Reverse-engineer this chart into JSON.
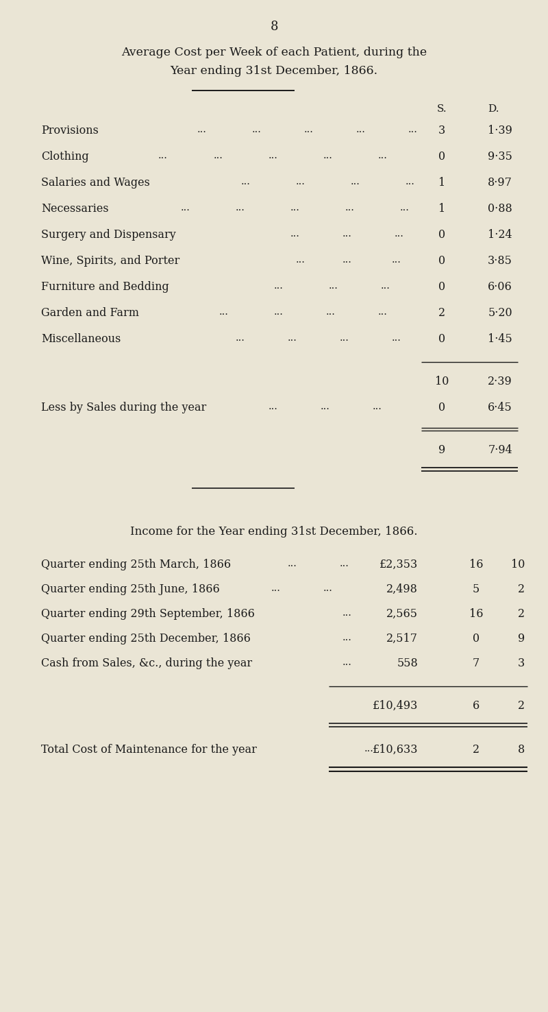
{
  "bg_color": "#EAE5D5",
  "text_color": "#1a1a1a",
  "page_number": "8",
  "title1": "Average Cost per Week of each Patient, during the",
  "title2": "Year ending 31st December, 1866.",
  "s_header": "S.",
  "d_header": "D.",
  "section1_labels": [
    "Provisions",
    "Clothing",
    "Salaries and Wages",
    "Necessaries",
    "Surgery and Dispensary",
    "Wine, Spirits, and Porter",
    "Furniture and Bedding",
    "Garden and Farm",
    "Miscellaneous"
  ],
  "section1_dots": [
    [
      0.36,
      0.46,
      0.555,
      0.65,
      0.745
    ],
    [
      0.29,
      0.39,
      0.49,
      0.59,
      0.69
    ],
    [
      0.44,
      0.54,
      0.64,
      0.74
    ],
    [
      0.33,
      0.43,
      0.53,
      0.63,
      0.73
    ],
    [
      0.53,
      0.625,
      0.72
    ],
    [
      0.54,
      0.625,
      0.715
    ],
    [
      0.5,
      0.6,
      0.695
    ],
    [
      0.4,
      0.5,
      0.595,
      0.69
    ],
    [
      0.43,
      0.525,
      0.62,
      0.715
    ]
  ],
  "section1_s": [
    "3",
    "0",
    "1",
    "1",
    "0",
    "0",
    "0",
    "2",
    "0"
  ],
  "section1_d": [
    "1·39",
    "9·35",
    "8·97",
    "0·88",
    "1·24",
    "3·85",
    "6·06",
    "5·20",
    "1·45"
  ],
  "subtotal_s": "10",
  "subtotal_d": "2·39",
  "less_label": "Less by Sales during the year",
  "less_dots": [
    0.49,
    0.585,
    0.68
  ],
  "less_s": "0",
  "less_d": "6·45",
  "total_s": "9",
  "total_d": "7·94",
  "section2_title": "Income for the Year ending 31st December, 1866.",
  "section2_labels": [
    "Quarter ending 25th March, 1866",
    "Quarter ending 25th June, 1866",
    "Quarter ending 29th September, 1866",
    "Quarter ending 25th December, 1866",
    "Cash from Sales, &c., during the year"
  ],
  "section2_dots": [
    [
      0.525,
      0.62
    ],
    [
      0.495,
      0.59
    ],
    [
      0.625
    ],
    [
      0.625
    ],
    [
      0.625
    ]
  ],
  "section2_prefix": [
    "£2,353",
    "2,498",
    "2,565",
    "2,517",
    "558"
  ],
  "section2_s": [
    "16",
    "5",
    "16",
    "0",
    "7"
  ],
  "section2_d": [
    "10",
    "2",
    "2",
    "9",
    "3"
  ],
  "income_total_prefix": "£10,493",
  "income_total_s": "6",
  "income_total_d": "2",
  "maint_label": "Total Cost of Maintenance for the year",
  "maint_dots": [
    0.665
  ],
  "maint_prefix": "£10,633",
  "maint_s": "2",
  "maint_d": "8"
}
